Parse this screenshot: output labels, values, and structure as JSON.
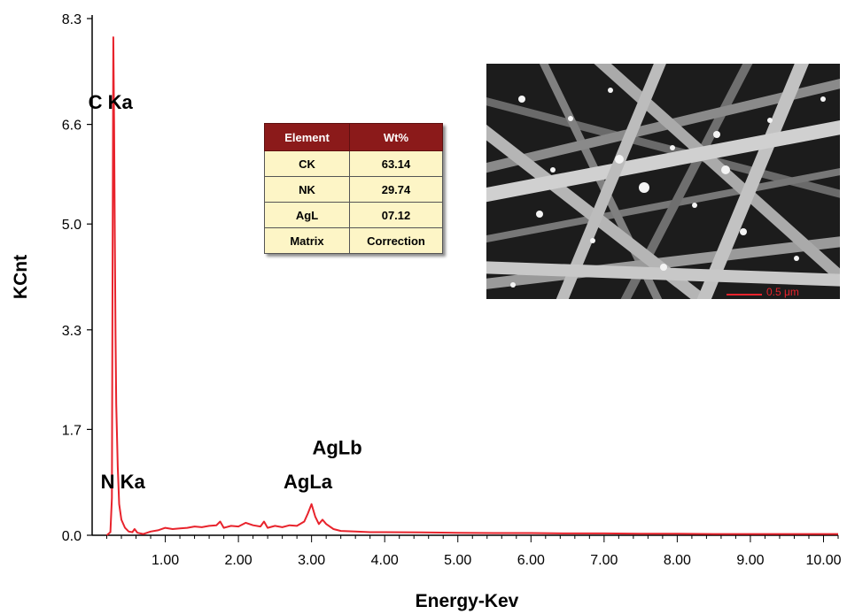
{
  "chart_data": {
    "type": "line",
    "xlabel": "Energy-Kev",
    "ylabel": "KCnt",
    "xlim": [
      0,
      10.2
    ],
    "ylim": [
      0,
      8.3
    ],
    "x_ticks": [
      "1.00",
      "2.00",
      "3.00",
      "4.00",
      "5.00",
      "6.00",
      "7.00",
      "8.00",
      "9.00",
      "10.00"
    ],
    "y_ticks": [
      "0.0",
      "1.7",
      "3.3",
      "5.0",
      "6.6",
      "8.3"
    ],
    "series": [
      {
        "color": "#e8232c",
        "points": [
          [
            0.2,
            0.0
          ],
          [
            0.25,
            0.05
          ],
          [
            0.27,
            0.6
          ],
          [
            0.28,
            4.5
          ],
          [
            0.29,
            8.0
          ],
          [
            0.3,
            6.6
          ],
          [
            0.31,
            4.8
          ],
          [
            0.32,
            3.2
          ],
          [
            0.33,
            2.1
          ],
          [
            0.35,
            1.1
          ],
          [
            0.37,
            0.5
          ],
          [
            0.4,
            0.25
          ],
          [
            0.45,
            0.12
          ],
          [
            0.5,
            0.06
          ],
          [
            0.55,
            0.05
          ],
          [
            0.58,
            0.1
          ],
          [
            0.62,
            0.04
          ],
          [
            0.7,
            0.02
          ],
          [
            0.8,
            0.06
          ],
          [
            0.9,
            0.08
          ],
          [
            1.0,
            0.12
          ],
          [
            1.1,
            0.1
          ],
          [
            1.2,
            0.11
          ],
          [
            1.3,
            0.12
          ],
          [
            1.4,
            0.14
          ],
          [
            1.5,
            0.13
          ],
          [
            1.6,
            0.15
          ],
          [
            1.7,
            0.16
          ],
          [
            1.75,
            0.22
          ],
          [
            1.8,
            0.12
          ],
          [
            1.9,
            0.15
          ],
          [
            2.0,
            0.14
          ],
          [
            2.1,
            0.2
          ],
          [
            2.2,
            0.16
          ],
          [
            2.3,
            0.14
          ],
          [
            2.35,
            0.22
          ],
          [
            2.4,
            0.12
          ],
          [
            2.5,
            0.15
          ],
          [
            2.6,
            0.13
          ],
          [
            2.7,
            0.16
          ],
          [
            2.8,
            0.15
          ],
          [
            2.9,
            0.22
          ],
          [
            2.95,
            0.35
          ],
          [
            3.0,
            0.5
          ],
          [
            3.05,
            0.3
          ],
          [
            3.1,
            0.18
          ],
          [
            3.15,
            0.25
          ],
          [
            3.2,
            0.18
          ],
          [
            3.3,
            0.1
          ],
          [
            3.4,
            0.07
          ],
          [
            3.6,
            0.06
          ],
          [
            3.8,
            0.05
          ],
          [
            4.0,
            0.05
          ],
          [
            4.5,
            0.045
          ],
          [
            5.0,
            0.04
          ],
          [
            5.5,
            0.035
          ],
          [
            6.0,
            0.035
          ],
          [
            6.5,
            0.03
          ],
          [
            7.0,
            0.03
          ],
          [
            7.5,
            0.025
          ],
          [
            8.0,
            0.025
          ],
          [
            8.5,
            0.02
          ],
          [
            9.0,
            0.02
          ],
          [
            9.5,
            0.02
          ],
          [
            10.0,
            0.02
          ],
          [
            10.2,
            0.02
          ]
        ]
      }
    ],
    "annotations": [
      {
        "text": "C  Ka",
        "x": 0.25,
        "y": 6.85
      },
      {
        "text": "N  Ka",
        "x": 0.42,
        "y": 0.75
      },
      {
        "text": "AgLa",
        "x": 2.95,
        "y": 0.75
      },
      {
        "text": "AgLb",
        "x": 3.35,
        "y": 1.3
      }
    ]
  },
  "table": {
    "headers": [
      "Element",
      "Wt%"
    ],
    "rows": [
      [
        "CK",
        "63.14"
      ],
      [
        "NK",
        "29.74"
      ],
      [
        "AgL",
        "07.12"
      ],
      [
        "Matrix",
        "Correction"
      ]
    ]
  },
  "sem_image": {
    "scale_bar_label": "0.5 μm",
    "scale_bar_color": "#e8232c"
  }
}
